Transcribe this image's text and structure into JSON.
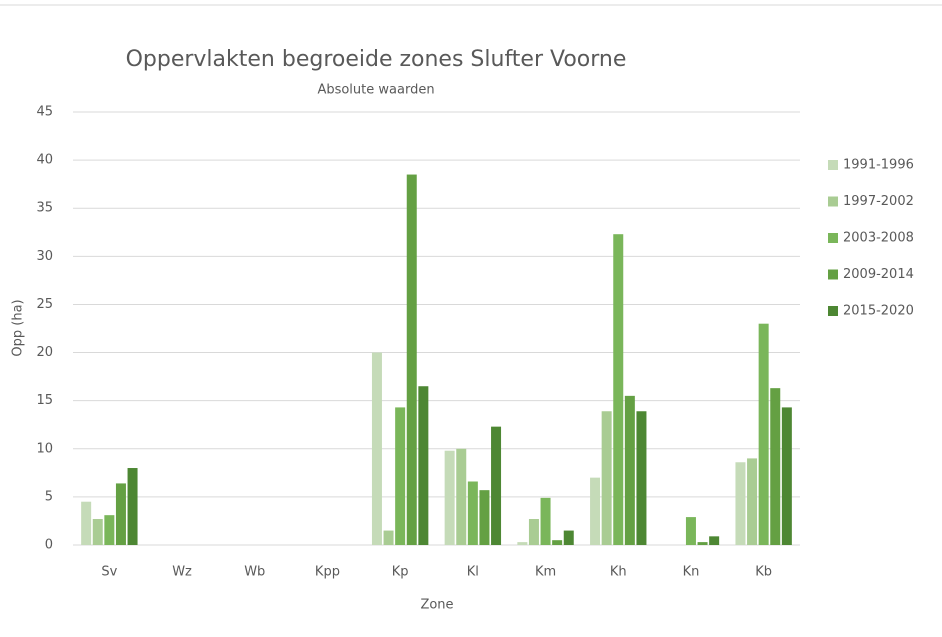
{
  "chart_data": {
    "type": "bar",
    "title": "Oppervlakten begroeide zones Slufter Voorne",
    "subtitle": "Absolute waarden",
    "y_label": "Opp (ha)",
    "x_label": "Zone",
    "categories": [
      "Sv",
      "Wz",
      "Wb",
      "Kpp",
      "Kp",
      "Kl",
      "Km",
      "Kh",
      "Kn",
      "Kb"
    ],
    "series": [
      {
        "name": "1991-1996",
        "color": "#c5dbb8",
        "values": [
          4.5,
          0,
          0,
          0,
          20.0,
          9.8,
          0.3,
          7.0,
          0,
          8.6
        ]
      },
      {
        "name": "1997-2002",
        "color": "#a9cc93",
        "values": [
          2.7,
          0,
          0,
          0,
          1.5,
          10.0,
          2.7,
          13.9,
          0,
          9.0
        ]
      },
      {
        "name": "2003-2008",
        "color": "#7ab65a",
        "values": [
          3.1,
          0,
          0,
          0,
          14.3,
          6.6,
          4.9,
          32.3,
          2.9,
          23.0
        ]
      },
      {
        "name": "2009-2014",
        "color": "#64a043",
        "values": [
          6.4,
          0,
          0,
          0,
          38.5,
          5.7,
          0.5,
          15.5,
          0.3,
          16.3
        ]
      },
      {
        "name": "2015-2020",
        "color": "#4d8733",
        "values": [
          8.0,
          0,
          0,
          0,
          16.5,
          12.3,
          1.5,
          13.9,
          0.9,
          14.3
        ]
      }
    ],
    "ylim": [
      0,
      45
    ],
    "yticks": [
      0,
      5,
      10,
      15,
      20,
      25,
      30,
      35,
      40,
      45
    ],
    "grid": true,
    "legend": "right"
  }
}
